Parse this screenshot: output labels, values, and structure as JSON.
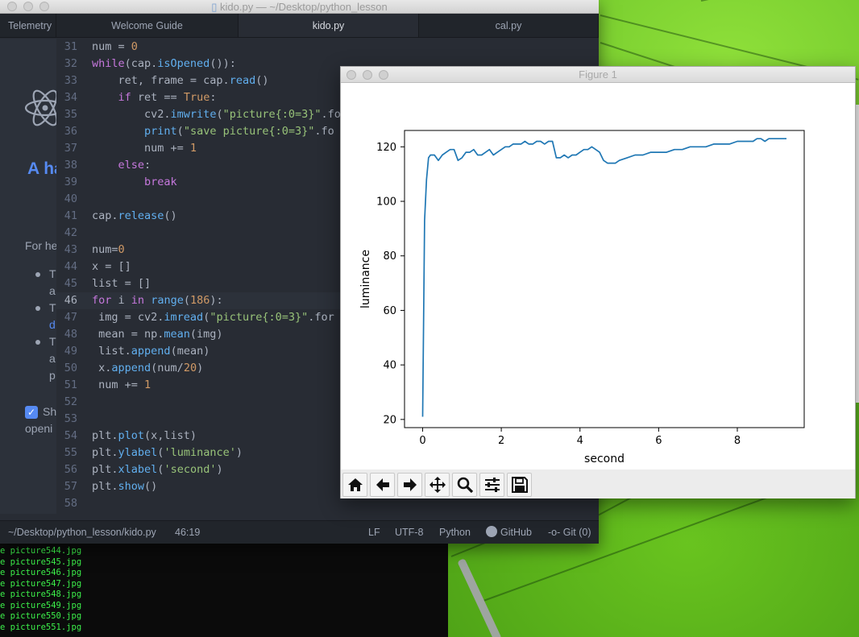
{
  "editor_window": {
    "title": "kido.py — ~/Desktop/python_lesson",
    "tabs": [
      {
        "label": "Telemetry"
      },
      {
        "label": "Welcome Guide"
      },
      {
        "label": "kido.py"
      },
      {
        "label": "cal.py"
      }
    ]
  },
  "welcome": {
    "heading": "A ha",
    "for_help": "For he",
    "bullets": [
      "T",
      "a",
      "T",
      "d",
      "T",
      "a",
      "p"
    ],
    "checkbox_label": "Sh",
    "opening": "openi"
  },
  "code": [
    {
      "n": "31",
      "tokens": [
        [
          "p",
          "num = "
        ],
        [
          "n",
          "0"
        ]
      ]
    },
    {
      "n": "32",
      "tokens": [
        [
          "k",
          "while"
        ],
        [
          "p",
          "(cap."
        ],
        [
          "f",
          "isOpened"
        ],
        [
          "p",
          "()):"
        ]
      ]
    },
    {
      "n": "33",
      "tokens": [
        [
          "p",
          "    ret, frame = cap."
        ],
        [
          "f",
          "read"
        ],
        [
          "p",
          "()"
        ]
      ]
    },
    {
      "n": "34",
      "tokens": [
        [
          "k",
          "    if"
        ],
        [
          "p",
          " ret == "
        ],
        [
          "n",
          "True"
        ],
        [
          "p",
          ":"
        ]
      ]
    },
    {
      "n": "35",
      "tokens": [
        [
          "p",
          "        cv2."
        ],
        [
          "f",
          "imwrite"
        ],
        [
          "p",
          "("
        ],
        [
          "s",
          "\"picture{:0=3}\""
        ],
        [
          "p",
          ".fo"
        ]
      ]
    },
    {
      "n": "36",
      "tokens": [
        [
          "f",
          "        print"
        ],
        [
          "p",
          "("
        ],
        [
          "s",
          "\"save picture{:0=3}\""
        ],
        [
          "p",
          ".fo"
        ]
      ]
    },
    {
      "n": "37",
      "tokens": [
        [
          "p",
          "        num += "
        ],
        [
          "n",
          "1"
        ]
      ]
    },
    {
      "n": "38",
      "tokens": [
        [
          "k",
          "    else"
        ],
        [
          "p",
          ":"
        ]
      ]
    },
    {
      "n": "39",
      "tokens": [
        [
          "k",
          "        break"
        ]
      ]
    },
    {
      "n": "40",
      "tokens": []
    },
    {
      "n": "41",
      "tokens": [
        [
          "p",
          "cap."
        ],
        [
          "f",
          "release"
        ],
        [
          "p",
          "()"
        ]
      ]
    },
    {
      "n": "42",
      "tokens": []
    },
    {
      "n": "43",
      "tokens": [
        [
          "p",
          "num="
        ],
        [
          "n",
          "0"
        ]
      ]
    },
    {
      "n": "44",
      "tokens": [
        [
          "p",
          "x = []"
        ]
      ]
    },
    {
      "n": "45",
      "tokens": [
        [
          "p",
          "list = []"
        ]
      ]
    },
    {
      "n": "46",
      "tokens": [
        [
          "k",
          "for"
        ],
        [
          "p",
          " i "
        ],
        [
          "k",
          "in"
        ],
        [
          "p",
          " "
        ],
        [
          "f",
          "range"
        ],
        [
          "p",
          "("
        ],
        [
          "n",
          "186"
        ],
        [
          "p",
          "):"
        ]
      ]
    },
    {
      "n": "47",
      "tokens": [
        [
          "p",
          " img = cv2."
        ],
        [
          "f",
          "imread"
        ],
        [
          "p",
          "("
        ],
        [
          "s",
          "\"picture{:0=3}\""
        ],
        [
          "p",
          ".for"
        ]
      ]
    },
    {
      "n": "48",
      "tokens": [
        [
          "p",
          " mean = np."
        ],
        [
          "f",
          "mean"
        ],
        [
          "p",
          "(img)"
        ]
      ]
    },
    {
      "n": "49",
      "tokens": [
        [
          "p",
          " list."
        ],
        [
          "f",
          "append"
        ],
        [
          "p",
          "(mean)"
        ]
      ]
    },
    {
      "n": "50",
      "tokens": [
        [
          "p",
          " x."
        ],
        [
          "f",
          "append"
        ],
        [
          "p",
          "(num/"
        ],
        [
          "n",
          "20"
        ],
        [
          "p",
          ")"
        ]
      ]
    },
    {
      "n": "51",
      "tokens": [
        [
          "p",
          " num += "
        ],
        [
          "n",
          "1"
        ]
      ]
    },
    {
      "n": "52",
      "tokens": []
    },
    {
      "n": "53",
      "tokens": []
    },
    {
      "n": "54",
      "tokens": [
        [
          "p",
          "plt."
        ],
        [
          "f",
          "plot"
        ],
        [
          "p",
          "(x,list)"
        ]
      ]
    },
    {
      "n": "55",
      "tokens": [
        [
          "p",
          "plt."
        ],
        [
          "f",
          "ylabel"
        ],
        [
          "p",
          "("
        ],
        [
          "s",
          "'luminance'"
        ],
        [
          "p",
          ")"
        ]
      ]
    },
    {
      "n": "56",
      "tokens": [
        [
          "p",
          "plt."
        ],
        [
          "f",
          "xlabel"
        ],
        [
          "p",
          "("
        ],
        [
          "s",
          "'second'"
        ],
        [
          "p",
          ")"
        ]
      ]
    },
    {
      "n": "57",
      "tokens": [
        [
          "p",
          "plt."
        ],
        [
          "f",
          "show"
        ],
        [
          "p",
          "()"
        ]
      ]
    },
    {
      "n": "58",
      "tokens": []
    }
  ],
  "status": {
    "path": "~/Desktop/python_lesson/kido.py",
    "cursor": "46:19",
    "line_ending": "LF",
    "encoding": "UTF-8",
    "grammar": "Python",
    "github": "GitHub",
    "git": "Git (0)"
  },
  "terminal": {
    "lines": [
      "e picture544.jpg",
      "e picture545.jpg",
      "e picture546.jpg",
      "e picture547.jpg",
      "e picture548.jpg",
      "e picture549.jpg",
      "e picture550.jpg",
      "e picture551.jpg"
    ]
  },
  "figure_window": {
    "title": "Figure 1",
    "toolbar": [
      "home-icon",
      "back-arrow-icon",
      "forward-arrow-icon",
      "pan-icon",
      "zoom-icon",
      "subplots-icon",
      "save-icon"
    ]
  },
  "chart_data": {
    "type": "line",
    "xlabel": "second",
    "ylabel": "luminance",
    "xlim": [
      -0.46,
      9.7
    ],
    "ylim": [
      17,
      126
    ],
    "xticks": [
      0,
      2,
      4,
      6,
      8
    ],
    "yticks": [
      20,
      40,
      60,
      80,
      100,
      120
    ],
    "color": "#1f77b4",
    "series": [
      {
        "x": [
          0,
          0.05,
          0.1,
          0.15,
          0.2,
          0.3,
          0.4,
          0.5,
          0.6,
          0.7,
          0.8,
          0.9,
          1.0,
          1.1,
          1.2,
          1.3,
          1.4,
          1.5,
          1.6,
          1.7,
          1.8,
          1.9,
          2.0,
          2.1,
          2.2,
          2.3,
          2.4,
          2.5,
          2.6,
          2.7,
          2.8,
          2.9,
          3.0,
          3.1,
          3.2,
          3.3,
          3.4,
          3.5,
          3.6,
          3.7,
          3.8,
          3.9,
          4.0,
          4.1,
          4.2,
          4.3,
          4.4,
          4.5,
          4.6,
          4.7,
          4.8,
          4.9,
          5.0,
          5.2,
          5.4,
          5.6,
          5.8,
          6.0,
          6.2,
          6.4,
          6.6,
          6.8,
          7.0,
          7.2,
          7.4,
          7.6,
          7.8,
          8.0,
          8.2,
          8.4,
          8.5,
          8.6,
          8.7,
          8.8,
          8.9,
          9.0,
          9.1,
          9.2,
          9.25
        ],
        "y": [
          21,
          93,
          108,
          116,
          117,
          117,
          115,
          117,
          118,
          119,
          119,
          115,
          116,
          118,
          118,
          119,
          117,
          117,
          118,
          119,
          117,
          118,
          119,
          120,
          120,
          121,
          121,
          121,
          122,
          121,
          121,
          122,
          122,
          121,
          122,
          122,
          116,
          116,
          117,
          116,
          117,
          117,
          118,
          119,
          119,
          120,
          119,
          118,
          115,
          114,
          114,
          114,
          115,
          116,
          117,
          117,
          118,
          118,
          118,
          119,
          119,
          120,
          120,
          120,
          121,
          121,
          121,
          122,
          122,
          122,
          123,
          123,
          122,
          123,
          123,
          123,
          123,
          123,
          123
        ]
      }
    ]
  }
}
